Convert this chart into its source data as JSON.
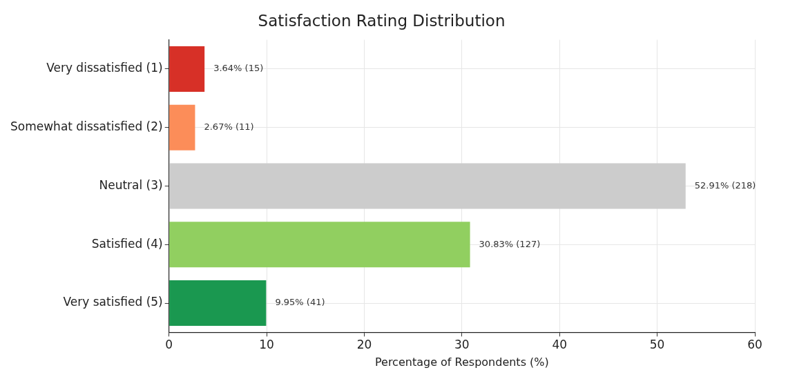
{
  "chart_data": {
    "type": "bar",
    "orientation": "horizontal",
    "title": "Satisfaction Rating Distribution",
    "xlabel": "Percentage of Respondents (%)",
    "categories": [
      "Very dissatisfied (1)",
      "Somewhat dissatisfied (2)",
      "Neutral (3)",
      "Satisfied (4)",
      "Very satisfied (5)"
    ],
    "values": [
      3.64,
      2.67,
      52.91,
      30.83,
      9.95
    ],
    "colors": [
      "#d73027",
      "#fc8d59",
      "#cccccc",
      "#91cf60",
      "#1a9850"
    ],
    "value_labels": [
      "3.64% (15)",
      "2.67% (11)",
      "52.91% (218)",
      "30.83% (127)",
      "9.95% (41)"
    ],
    "xlim": [
      0,
      60
    ],
    "xticks": [
      0,
      10,
      20,
      30,
      40,
      50,
      60
    ],
    "grid": true,
    "legend": false
  }
}
